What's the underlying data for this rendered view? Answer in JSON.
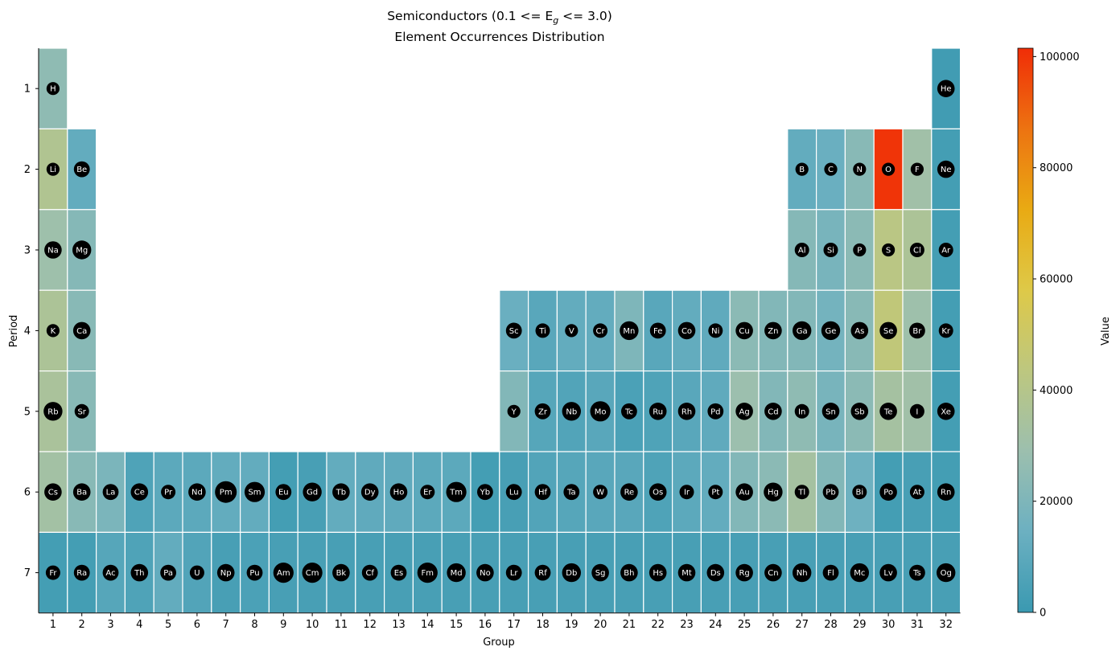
{
  "chart_data": {
    "type": "heatmap",
    "title_line1": "Semiconductors (0.1 <= E",
    "title_subscript": "g",
    "title_line1_end": " <= 3.0)",
    "title_line2": "Element Occurrences Distribution",
    "xlabel": "Group",
    "ylabel": "Period",
    "x_ticks": [
      "1",
      "2",
      "3",
      "4",
      "5",
      "6",
      "7",
      "8",
      "9",
      "10",
      "11",
      "12",
      "13",
      "14",
      "15",
      "16",
      "17",
      "18",
      "19",
      "20",
      "21",
      "22",
      "23",
      "24",
      "25",
      "26",
      "27",
      "28",
      "29",
      "30",
      "31",
      "32"
    ],
    "y_ticks": [
      "1",
      "2",
      "3",
      "4",
      "5",
      "6",
      "7"
    ],
    "colorbar": {
      "label": "Value",
      "range": [
        0,
        101500
      ],
      "ticks": [
        "0",
        "20000",
        "40000",
        "60000",
        "80000",
        "100000"
      ],
      "tick_values": [
        0,
        20000,
        40000,
        60000,
        80000,
        100000
      ],
      "colors": [
        "#3a99b1",
        "#6cb0c1",
        "#9cbfae",
        "#bdc77f",
        "#dec948",
        "#e9aa13",
        "#ed7311",
        "#f02d07"
      ]
    },
    "elements": [
      {
        "s": "H",
        "p": 1,
        "g": 1,
        "v": 25000,
        "r": 0.45
      },
      {
        "s": "He",
        "p": 1,
        "g": 32,
        "v": 2000,
        "r": 0.6
      },
      {
        "s": "Li",
        "p": 2,
        "g": 1,
        "v": 38000,
        "r": 0.45
      },
      {
        "s": "Be",
        "p": 2,
        "g": 2,
        "v": 12000,
        "r": 0.55
      },
      {
        "s": "B",
        "p": 2,
        "g": 27,
        "v": 12000,
        "r": 0.45
      },
      {
        "s": "C",
        "p": 2,
        "g": 28,
        "v": 14000,
        "r": 0.45
      },
      {
        "s": "N",
        "p": 2,
        "g": 29,
        "v": 23000,
        "r": 0.45
      },
      {
        "s": "O",
        "p": 2,
        "g": 30,
        "v": 100000,
        "r": 0.45
      },
      {
        "s": "F",
        "p": 2,
        "g": 31,
        "v": 31000,
        "r": 0.45
      },
      {
        "s": "Ne",
        "p": 2,
        "g": 32,
        "v": 3000,
        "r": 0.6
      },
      {
        "s": "Na",
        "p": 3,
        "g": 1,
        "v": 30000,
        "r": 0.6
      },
      {
        "s": "Mg",
        "p": 3,
        "g": 2,
        "v": 22000,
        "r": 0.65
      },
      {
        "s": "Al",
        "p": 3,
        "g": 27,
        "v": 22000,
        "r": 0.5
      },
      {
        "s": "Si",
        "p": 3,
        "g": 28,
        "v": 18000,
        "r": 0.5
      },
      {
        "s": "P",
        "p": 3,
        "g": 29,
        "v": 24000,
        "r": 0.45
      },
      {
        "s": "S",
        "p": 3,
        "g": 30,
        "v": 42000,
        "r": 0.45
      },
      {
        "s": "Cl",
        "p": 3,
        "g": 31,
        "v": 36000,
        "r": 0.5
      },
      {
        "s": "Ar",
        "p": 3,
        "g": 32,
        "v": 3000,
        "r": 0.5
      },
      {
        "s": "K",
        "p": 4,
        "g": 1,
        "v": 36000,
        "r": 0.45
      },
      {
        "s": "Ca",
        "p": 4,
        "g": 2,
        "v": 23000,
        "r": 0.6
      },
      {
        "s": "Sc",
        "p": 4,
        "g": 17,
        "v": 14000,
        "r": 0.55
      },
      {
        "s": "Ti",
        "p": 4,
        "g": 18,
        "v": 9000,
        "r": 0.5
      },
      {
        "s": "V",
        "p": 4,
        "g": 19,
        "v": 12000,
        "r": 0.45
      },
      {
        "s": "Cr",
        "p": 4,
        "g": 20,
        "v": 12000,
        "r": 0.5
      },
      {
        "s": "Mn",
        "p": 4,
        "g": 21,
        "v": 20000,
        "r": 0.65
      },
      {
        "s": "Fe",
        "p": 4,
        "g": 22,
        "v": 9000,
        "r": 0.55
      },
      {
        "s": "Co",
        "p": 4,
        "g": 23,
        "v": 12000,
        "r": 0.6
      },
      {
        "s": "Ni",
        "p": 4,
        "g": 24,
        "v": 11000,
        "r": 0.5
      },
      {
        "s": "Cu",
        "p": 4,
        "g": 25,
        "v": 24000,
        "r": 0.6
      },
      {
        "s": "Zn",
        "p": 4,
        "g": 26,
        "v": 21000,
        "r": 0.6
      },
      {
        "s": "Ga",
        "p": 4,
        "g": 27,
        "v": 21000,
        "r": 0.65
      },
      {
        "s": "Ge",
        "p": 4,
        "g": 28,
        "v": 17000,
        "r": 0.65
      },
      {
        "s": "As",
        "p": 4,
        "g": 29,
        "v": 23000,
        "r": 0.6
      },
      {
        "s": "Se",
        "p": 4,
        "g": 30,
        "v": 45000,
        "r": 0.6
      },
      {
        "s": "Br",
        "p": 4,
        "g": 31,
        "v": 30000,
        "r": 0.55
      },
      {
        "s": "Kr",
        "p": 4,
        "g": 32,
        "v": 3000,
        "r": 0.5
      },
      {
        "s": "Rb",
        "p": 5,
        "g": 1,
        "v": 35000,
        "r": 0.65
      },
      {
        "s": "Sr",
        "p": 5,
        "g": 2,
        "v": 23000,
        "r": 0.5
      },
      {
        "s": "Y",
        "p": 5,
        "g": 17,
        "v": 21000,
        "r": 0.45
      },
      {
        "s": "Zr",
        "p": 5,
        "g": 18,
        "v": 8000,
        "r": 0.55
      },
      {
        "s": "Nb",
        "p": 5,
        "g": 19,
        "v": 7000,
        "r": 0.65
      },
      {
        "s": "Mo",
        "p": 5,
        "g": 20,
        "v": 9000,
        "r": 0.7
      },
      {
        "s": "Tc",
        "p": 5,
        "g": 21,
        "v": 5000,
        "r": 0.55
      },
      {
        "s": "Ru",
        "p": 5,
        "g": 22,
        "v": 6000,
        "r": 0.6
      },
      {
        "s": "Rh",
        "p": 5,
        "g": 23,
        "v": 9000,
        "r": 0.6
      },
      {
        "s": "Pd",
        "p": 5,
        "g": 24,
        "v": 11000,
        "r": 0.55
      },
      {
        "s": "Ag",
        "p": 5,
        "g": 25,
        "v": 29000,
        "r": 0.6
      },
      {
        "s": "Cd",
        "p": 5,
        "g": 26,
        "v": 21000,
        "r": 0.6
      },
      {
        "s": "In",
        "p": 5,
        "g": 27,
        "v": 25000,
        "r": 0.5
      },
      {
        "s": "Sn",
        "p": 5,
        "g": 28,
        "v": 18000,
        "r": 0.6
      },
      {
        "s": "Sb",
        "p": 5,
        "g": 29,
        "v": 24000,
        "r": 0.6
      },
      {
        "s": "Te",
        "p": 5,
        "g": 30,
        "v": 33000,
        "r": 0.6
      },
      {
        "s": "I",
        "p": 5,
        "g": 31,
        "v": 31000,
        "r": 0.5
      },
      {
        "s": "Xe",
        "p": 5,
        "g": 32,
        "v": 3000,
        "r": 0.6
      },
      {
        "s": "Cs",
        "p": 6,
        "g": 1,
        "v": 32000,
        "r": 0.6
      },
      {
        "s": "Ba",
        "p": 6,
        "g": 2,
        "v": 23000,
        "r": 0.6
      },
      {
        "s": "La",
        "p": 6,
        "g": 3,
        "v": 19000,
        "r": 0.55
      },
      {
        "s": "Ce",
        "p": 6,
        "g": 4,
        "v": 6000,
        "r": 0.6
      },
      {
        "s": "Pr",
        "p": 6,
        "g": 5,
        "v": 10000,
        "r": 0.5
      },
      {
        "s": "Nd",
        "p": 6,
        "g": 6,
        "v": 10000,
        "r": 0.6
      },
      {
        "s": "Pm",
        "p": 6,
        "g": 7,
        "v": 12000,
        "r": 0.75
      },
      {
        "s": "Sm",
        "p": 6,
        "g": 8,
        "v": 12000,
        "r": 0.7
      },
      {
        "s": "Eu",
        "p": 6,
        "g": 9,
        "v": 3000,
        "r": 0.55
      },
      {
        "s": "Gd",
        "p": 6,
        "g": 10,
        "v": 4000,
        "r": 0.65
      },
      {
        "s": "Tb",
        "p": 6,
        "g": 11,
        "v": 12000,
        "r": 0.6
      },
      {
        "s": "Dy",
        "p": 6,
        "g": 12,
        "v": 11000,
        "r": 0.6
      },
      {
        "s": "Ho",
        "p": 6,
        "g": 13,
        "v": 11000,
        "r": 0.6
      },
      {
        "s": "Er",
        "p": 6,
        "g": 14,
        "v": 10000,
        "r": 0.5
      },
      {
        "s": "Tm",
        "p": 6,
        "g": 15,
        "v": 10000,
        "r": 0.7
      },
      {
        "s": "Yb",
        "p": 6,
        "g": 16,
        "v": 3000,
        "r": 0.55
      },
      {
        "s": "Lu",
        "p": 6,
        "g": 17,
        "v": 4000,
        "r": 0.55
      },
      {
        "s": "Hf",
        "p": 6,
        "g": 18,
        "v": 7000,
        "r": 0.55
      },
      {
        "s": "Ta",
        "p": 6,
        "g": 19,
        "v": 8000,
        "r": 0.55
      },
      {
        "s": "W",
        "p": 6,
        "g": 20,
        "v": 9000,
        "r": 0.5
      },
      {
        "s": "Re",
        "p": 6,
        "g": 21,
        "v": 9000,
        "r": 0.6
      },
      {
        "s": "Os",
        "p": 6,
        "g": 22,
        "v": 6000,
        "r": 0.6
      },
      {
        "s": "Ir",
        "p": 6,
        "g": 23,
        "v": 10000,
        "r": 0.5
      },
      {
        "s": "Pt",
        "p": 6,
        "g": 24,
        "v": 12000,
        "r": 0.5
      },
      {
        "s": "Au",
        "p": 6,
        "g": 25,
        "v": 21000,
        "r": 0.6
      },
      {
        "s": "Hg",
        "p": 6,
        "g": 26,
        "v": 24000,
        "r": 0.65
      },
      {
        "s": "Tl",
        "p": 6,
        "g": 27,
        "v": 33000,
        "r": 0.5
      },
      {
        "s": "Pb",
        "p": 6,
        "g": 28,
        "v": 21000,
        "r": 0.55
      },
      {
        "s": "Bi",
        "p": 6,
        "g": 29,
        "v": 15000,
        "r": 0.5
      },
      {
        "s": "Po",
        "p": 6,
        "g": 30,
        "v": 3000,
        "r": 0.6
      },
      {
        "s": "At",
        "p": 6,
        "g": 31,
        "v": 4000,
        "r": 0.5
      },
      {
        "s": "Rn",
        "p": 6,
        "g": 32,
        "v": 3000,
        "r": 0.6
      },
      {
        "s": "Fr",
        "p": 7,
        "g": 1,
        "v": 3000,
        "r": 0.5
      },
      {
        "s": "Ra",
        "p": 7,
        "g": 2,
        "v": 3000,
        "r": 0.55
      },
      {
        "s": "Ac",
        "p": 7,
        "g": 3,
        "v": 8000,
        "r": 0.55
      },
      {
        "s": "Th",
        "p": 7,
        "g": 4,
        "v": 6000,
        "r": 0.6
      },
      {
        "s": "Pa",
        "p": 7,
        "g": 5,
        "v": 12000,
        "r": 0.55
      },
      {
        "s": "U",
        "p": 7,
        "g": 6,
        "v": 7000,
        "r": 0.5
      },
      {
        "s": "Np",
        "p": 7,
        "g": 7,
        "v": 4000,
        "r": 0.6
      },
      {
        "s": "Pu",
        "p": 7,
        "g": 8,
        "v": 5000,
        "r": 0.55
      },
      {
        "s": "Am",
        "p": 7,
        "g": 9,
        "v": 4000,
        "r": 0.7
      },
      {
        "s": "Cm",
        "p": 7,
        "g": 10,
        "v": 4000,
        "r": 0.7
      },
      {
        "s": "Bk",
        "p": 7,
        "g": 11,
        "v": 4000,
        "r": 0.6
      },
      {
        "s": "Cf",
        "p": 7,
        "g": 12,
        "v": 4000,
        "r": 0.55
      },
      {
        "s": "Es",
        "p": 7,
        "g": 13,
        "v": 4000,
        "r": 0.55
      },
      {
        "s": "Fm",
        "p": 7,
        "g": 14,
        "v": 4000,
        "r": 0.7
      },
      {
        "s": "Md",
        "p": 7,
        "g": 15,
        "v": 4000,
        "r": 0.65
      },
      {
        "s": "No",
        "p": 7,
        "g": 16,
        "v": 4000,
        "r": 0.6
      },
      {
        "s": "Lr",
        "p": 7,
        "g": 17,
        "v": 4000,
        "r": 0.55
      },
      {
        "s": "Rf",
        "p": 7,
        "g": 18,
        "v": 4000,
        "r": 0.55
      },
      {
        "s": "Db",
        "p": 7,
        "g": 19,
        "v": 4000,
        "r": 0.65
      },
      {
        "s": "Sg",
        "p": 7,
        "g": 20,
        "v": 4000,
        "r": 0.6
      },
      {
        "s": "Bh",
        "p": 7,
        "g": 21,
        "v": 4000,
        "r": 0.6
      },
      {
        "s": "Hs",
        "p": 7,
        "g": 22,
        "v": 4000,
        "r": 0.6
      },
      {
        "s": "Mt",
        "p": 7,
        "g": 23,
        "v": 4000,
        "r": 0.6
      },
      {
        "s": "Ds",
        "p": 7,
        "g": 24,
        "v": 4000,
        "r": 0.6
      },
      {
        "s": "Rg",
        "p": 7,
        "g": 25,
        "v": 4000,
        "r": 0.6
      },
      {
        "s": "Cn",
        "p": 7,
        "g": 26,
        "v": 4000,
        "r": 0.6
      },
      {
        "s": "Nh",
        "p": 7,
        "g": 27,
        "v": 4000,
        "r": 0.65
      },
      {
        "s": "Fl",
        "p": 7,
        "g": 28,
        "v": 4000,
        "r": 0.55
      },
      {
        "s": "Mc",
        "p": 7,
        "g": 29,
        "v": 4000,
        "r": 0.65
      },
      {
        "s": "Lv",
        "p": 7,
        "g": 30,
        "v": 4000,
        "r": 0.6
      },
      {
        "s": "Ts",
        "p": 7,
        "g": 31,
        "v": 4000,
        "r": 0.55
      },
      {
        "s": "Og",
        "p": 7,
        "g": 32,
        "v": 4000,
        "r": 0.65
      }
    ]
  }
}
